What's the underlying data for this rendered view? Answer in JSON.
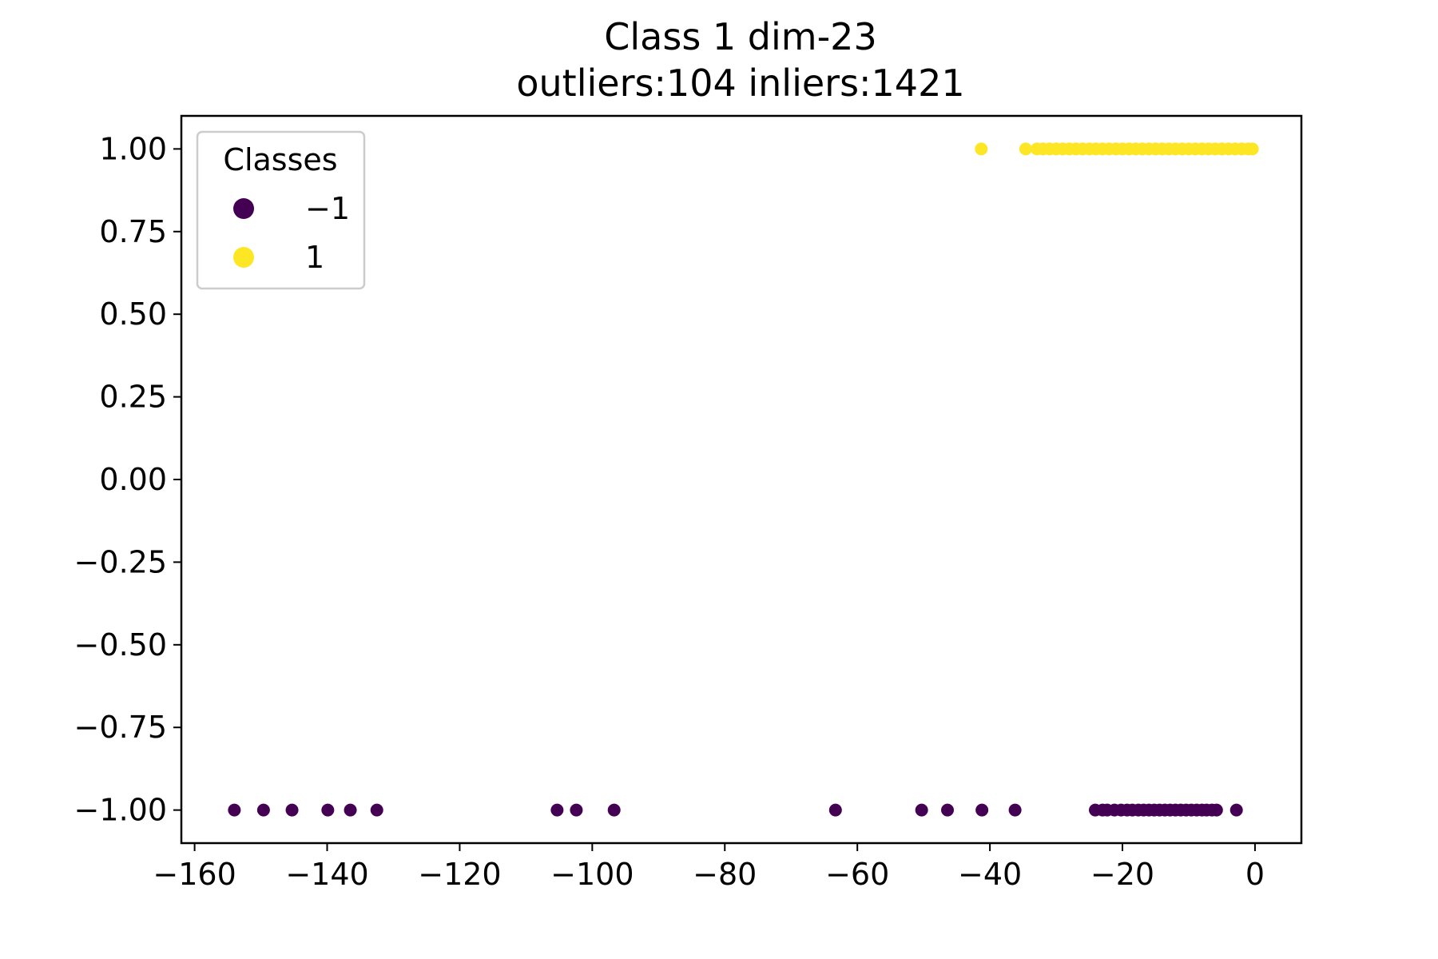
{
  "chart_data": {
    "type": "scatter",
    "title": "Class 1 dim-23",
    "subtitle": "outliers:104  inliers:1421",
    "xlabel": "",
    "ylabel": "",
    "xlim": [
      -162,
      7
    ],
    "ylim": [
      -1.1,
      1.1
    ],
    "xticks": [
      -160,
      -140,
      -120,
      -100,
      -80,
      -60,
      -40,
      -20,
      0
    ],
    "xtick_labels": [
      "−160",
      "−140",
      "−120",
      "−100",
      "−80",
      "−60",
      "−40",
      "−20",
      "0"
    ],
    "yticks": [
      1.0,
      0.75,
      0.5,
      0.25,
      0.0,
      -0.25,
      -0.5,
      -0.75,
      -1.0
    ],
    "ytick_labels": [
      "1.00",
      "0.75",
      "0.50",
      "0.25",
      "0.00",
      "−0.25",
      "−0.50",
      "−0.75",
      "−1.00"
    ],
    "grid": false,
    "legend": {
      "title": "Classes",
      "placement": "top-left",
      "entries": [
        {
          "label": "−1",
          "color": "#440154"
        },
        {
          "label": "1",
          "color": "#fde725"
        }
      ]
    },
    "series": [
      {
        "class": -1,
        "color": "#440154",
        "y": -1.0,
        "x": [
          -154,
          -149.6,
          -145.3,
          -139.9,
          -136.5,
          -132.5,
          -105.3,
          -102.4,
          -96.7,
          -63.3,
          -50.3,
          -46.4,
          -41.2,
          -36.2,
          -24.1,
          -23.0,
          -22.3,
          -21.2,
          -20.2,
          -19.3,
          -18.5,
          -17.6,
          -16.8,
          -16.0,
          -15.2,
          -14.4,
          -13.6,
          -12.8,
          -12.0,
          -11.2,
          -10.4,
          -9.6,
          -8.8,
          -8.0,
          -7.3,
          -6.5,
          -5.8,
          -2.8
        ]
      },
      {
        "class": 1,
        "color": "#fde725",
        "y": 1.0,
        "x": [
          -41.3,
          -34.6,
          -32.9,
          -32.0,
          -31.0,
          -30.0,
          -29.0,
          -28.0,
          -27.0,
          -26.0,
          -25.0,
          -24.0,
          -23.0,
          -22.0,
          -21.0,
          -20.0,
          -19.0,
          -18.0,
          -17.0,
          -16.0,
          -15.0,
          -14.0,
          -13.0,
          -12.0,
          -11.0,
          -10.0,
          -9.0,
          -8.0,
          -7.0,
          -6.0,
          -5.0,
          -4.0,
          -3.0,
          -2.0,
          -1.0,
          -0.4
        ]
      }
    ]
  }
}
